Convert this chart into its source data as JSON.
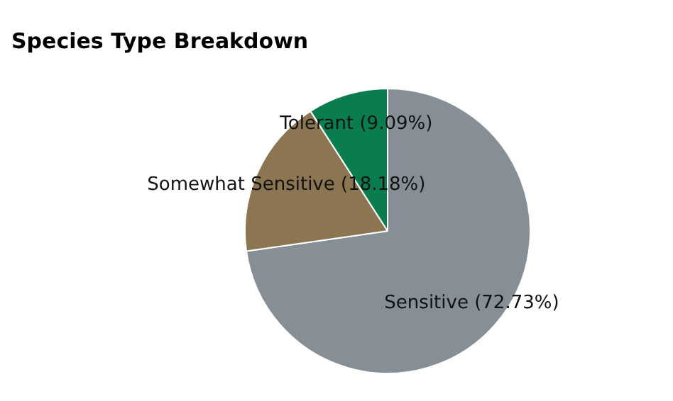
{
  "chart_data": {
    "type": "pie",
    "title": "Species Type Breakdown",
    "categories": [
      "Sensitive",
      "Somewhat Sensitive",
      "Tolerant"
    ],
    "values": [
      72.73,
      18.18,
      9.09
    ],
    "value_labels": [
      "(72.73%)",
      "(18.18%)",
      "(9.09%)"
    ],
    "colors": [
      "#868e96",
      "#8b7651",
      "#0a7d4f"
    ],
    "legend": false
  }
}
